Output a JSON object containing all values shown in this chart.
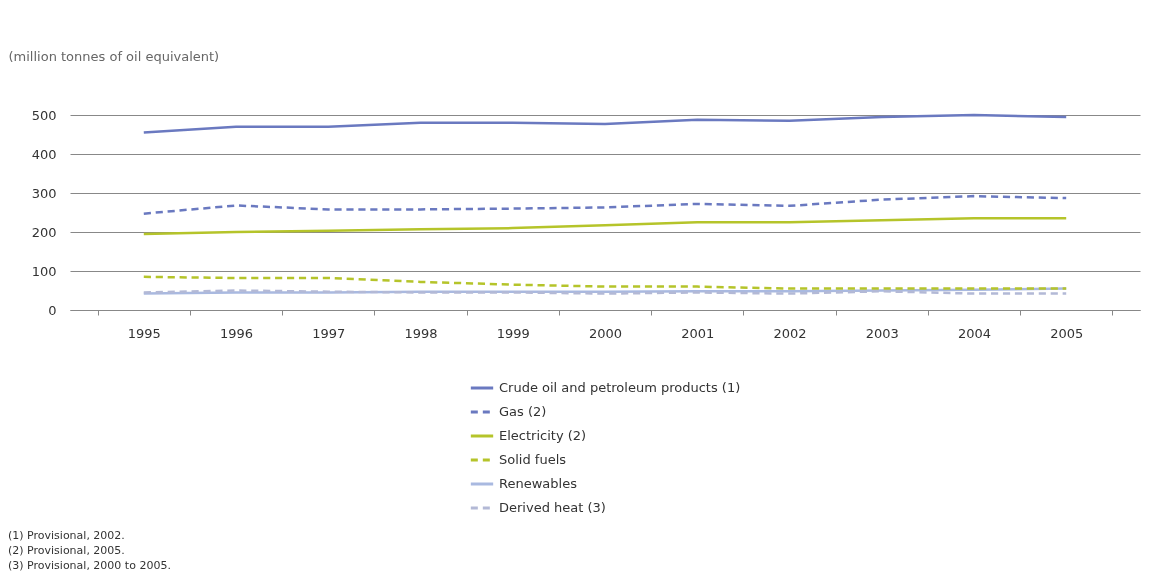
{
  "chart_data": {
    "type": "line",
    "ylabel": "(million tonnes of oil equivalent)",
    "categories": [
      "1995",
      "1996",
      "1997",
      "1998",
      "1999",
      "2000",
      "2001",
      "2002",
      "2003",
      "2004",
      "2005"
    ],
    "series": [
      {
        "name": "Crude oil and petroleum products (1)",
        "color": "#6a79c0",
        "line_style": "solid",
        "values": [
          455,
          470,
          470,
          480,
          480,
          477,
          488,
          485,
          495,
          500,
          495
        ]
      },
      {
        "name": "Gas (2)",
        "color": "#6a79c0",
        "line_style": "dashed",
        "values": [
          247,
          268,
          258,
          258,
          260,
          263,
          272,
          267,
          283,
          292,
          287
        ]
      },
      {
        "name": "Electricity (2)",
        "color": "#b5c42a",
        "line_style": "solid",
        "values": [
          195,
          200,
          203,
          207,
          210,
          217,
          225,
          225,
          230,
          235,
          235
        ]
      },
      {
        "name": "Solid fuels",
        "color": "#b5c42a",
        "line_style": "dashed",
        "values": [
          85,
          82,
          82,
          72,
          65,
          60,
          60,
          55,
          55,
          55,
          55
        ]
      },
      {
        "name": "Renewables",
        "color": "#a9b9e0",
        "line_style": "solid",
        "values": [
          42,
          45,
          45,
          47,
          47,
          47,
          48,
          48,
          50,
          52,
          55
        ]
      },
      {
        "name": "Derived heat (3)",
        "color": "#b3b9d6",
        "line_style": "dashed",
        "values": [
          45,
          50,
          47,
          45,
          45,
          42,
          45,
          42,
          48,
          42,
          42
        ]
      }
    ],
    "ylim": [
      0,
      500
    ],
    "yticks": [
      0,
      100,
      200,
      300,
      400,
      500
    ],
    "grid": "y",
    "legend": "bottom",
    "marker": "none",
    "annotations": [
      "(1)  Provisional, 2002.",
      "(2)  Provisional, 2005.",
      "(3)  Provisional, 2000 to 2005."
    ]
  }
}
